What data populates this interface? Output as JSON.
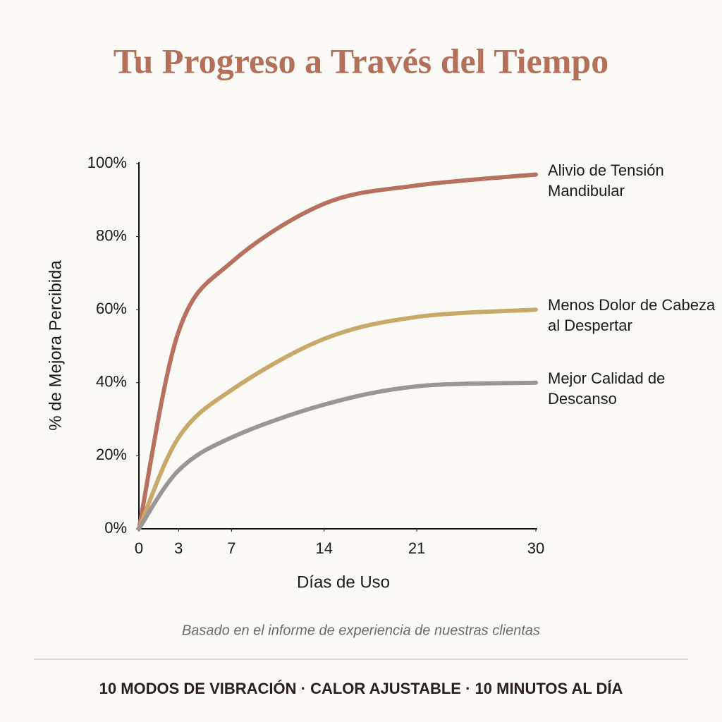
{
  "chart_data": {
    "type": "line",
    "title": "Tu Progreso a Través del Tiempo",
    "x_label": "Días de Uso",
    "y_label": "% de Mejora Percibida",
    "x": [
      0,
      3,
      7,
      14,
      21,
      30
    ],
    "xlim": [
      0,
      30
    ],
    "xticks": [
      0,
      3,
      7,
      14,
      21,
      30
    ],
    "ylim": [
      0,
      100
    ],
    "yticks": [
      {
        "value": 0,
        "label": "0%"
      },
      {
        "value": 20,
        "label": "20%"
      },
      {
        "value": 40,
        "label": "40%"
      },
      {
        "value": 60,
        "label": "60%"
      },
      {
        "value": 80,
        "label": "80%"
      },
      {
        "value": 100,
        "label": "100%"
      }
    ],
    "series": [
      {
        "name": "Alivio de Tensión Mandibular",
        "color": "#b8705f",
        "values": [
          0,
          54,
          73,
          89,
          94,
          97
        ]
      },
      {
        "name": "Menos Dolor de Cabeza al Despertar",
        "color": "#c9a96a",
        "values": [
          0,
          25,
          38,
          52,
          58,
          60
        ]
      },
      {
        "name": "Mejor Calidad de Descanso",
        "color": "#9a9694",
        "values": [
          0,
          16,
          25,
          34,
          39,
          40
        ]
      }
    ],
    "note": "Basado en el informe de experiencia de nuestras clientas",
    "footer": "10 MODOS DE VIBRACIÓN · CALOR AJUSTABLE · 10 MINUTOS AL DÍA"
  }
}
